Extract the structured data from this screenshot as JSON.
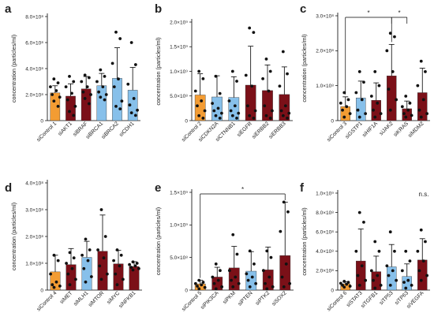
{
  "colors": {
    "orange": "#f39c33",
    "blue": "#87c0ea",
    "darkred": "#7b1018",
    "axis": "#000000",
    "dot": "#111111"
  },
  "chart_data": [
    {
      "panel": "a",
      "type": "bar",
      "ylabel": "concentration (particles/ml)",
      "ylim": [
        0,
        800000000
      ],
      "yticks": [
        0,
        200000000,
        400000000,
        600000000,
        800000000
      ],
      "ytick_labels": [
        "0",
        "2.0×10⁸",
        "4.0×10⁸",
        "6.0×10⁸",
        "8.0×10⁸"
      ],
      "categories": [
        "siControl 1",
        "siAKT1",
        "siBRAF",
        "siBRCA1",
        "siBRCA2",
        "siCDH1"
      ],
      "bar_colors": [
        "orange",
        "darkred",
        "darkred",
        "blue",
        "blue",
        "blue"
      ],
      "values": [
        213000000,
        188000000,
        244000000,
        268000000,
        325000000,
        234000000
      ],
      "errors": [
        55000000,
        95000000,
        95000000,
        95000000,
        235000000,
        175000000
      ],
      "points": [
        [
          320000000,
          290000000,
          260000000,
          230000000,
          200000000,
          180000000,
          150000000,
          110000000
        ],
        [
          340000000,
          300000000,
          260000000,
          210000000,
          160000000,
          110000000,
          70000000,
          40000000
        ],
        [
          350000000,
          330000000,
          300000000,
          260000000,
          220000000,
          200000000,
          170000000,
          130000000
        ],
        [
          390000000,
          340000000,
          300000000,
          260000000,
          220000000,
          200000000,
          180000000,
          160000000
        ],
        [
          680000000,
          630000000,
          440000000,
          320000000,
          260000000,
          150000000,
          110000000,
          90000000
        ],
        [
          600000000,
          430000000,
          280000000,
          170000000,
          120000000,
          80000000,
          60000000,
          40000000
        ]
      ],
      "significance": []
    },
    {
      "panel": "b",
      "type": "bar",
      "ylabel": "concentration (particles/ml)",
      "ylim": [
        0,
        2000000000
      ],
      "yticks": [
        0,
        500000000,
        1000000000,
        1500000000,
        2000000000
      ],
      "ytick_labels": [
        "0",
        "5.0×10⁸",
        "1.0×10⁹",
        "1.5×10⁹",
        "2.0×10⁹"
      ],
      "categories": [
        "siControl 2",
        "siCDKN2A",
        "siCTNNB1",
        "siEGFR",
        "siERBB2",
        "siERBB3"
      ],
      "bar_colors": [
        "orange",
        "blue",
        "blue",
        "darkred",
        "darkred",
        "darkred"
      ],
      "values": [
        520000000,
        480000000,
        470000000,
        720000000,
        610000000,
        530000000
      ],
      "errors": [
        430000000,
        430000000,
        420000000,
        790000000,
        520000000,
        560000000
      ],
      "points": [
        [
          1000000000,
          850000000,
          600000000,
          400000000,
          300000000,
          200000000,
          100000000,
          50000000
        ],
        [
          900000000,
          550000000,
          350000000,
          250000000,
          200000000,
          150000000,
          100000000,
          50000000
        ],
        [
          1000000000,
          800000000,
          400000000,
          300000000,
          200000000,
          150000000,
          100000000,
          50000000
        ],
        [
          1880000000,
          1790000000,
          920000000,
          700000000,
          300000000,
          200000000,
          100000000,
          50000000
        ],
        [
          1250000000,
          1000000000,
          850000000,
          600000000,
          300000000,
          200000000,
          100000000,
          50000000
        ],
        [
          1400000000,
          950000000,
          700000000,
          300000000,
          200000000,
          150000000,
          100000000,
          50000000
        ]
      ],
      "significance": []
    },
    {
      "panel": "c",
      "type": "bar",
      "ylabel": "concentration (particles/ml)",
      "ylim": [
        0,
        300000000
      ],
      "yticks": [
        0,
        100000000,
        200000000,
        300000000
      ],
      "ytick_labels": [
        "0",
        "1.0×10⁸",
        "2.0×10⁸",
        "3.0×10⁸"
      ],
      "categories": [
        "siControl 3",
        "siGSTP1",
        "siHIF1A",
        "siJAK2",
        "siKRAS",
        "siMDM2"
      ],
      "bar_colors": [
        "orange",
        "blue",
        "darkred",
        "darkred",
        "darkred",
        "darkred"
      ],
      "values": [
        40000000,
        65000000,
        58000000,
        128000000,
        34000000,
        80000000
      ],
      "errors": [
        28000000,
        48000000,
        50000000,
        90000000,
        22000000,
        70000000
      ],
      "points": [
        [
          80000000,
          60000000,
          50000000,
          40000000,
          30000000,
          20000000,
          10000000
        ],
        [
          140000000,
          110000000,
          80000000,
          60000000,
          30000000,
          20000000,
          10000000
        ],
        [
          140000000,
          100000000,
          70000000,
          50000000,
          30000000,
          20000000,
          10000000
        ],
        [
          250000000,
          240000000,
          200000000,
          140000000,
          90000000,
          60000000,
          30000000
        ],
        [
          70000000,
          50000000,
          40000000,
          30000000,
          20000000,
          15000000,
          10000000
        ],
        [
          170000000,
          140000000,
          100000000,
          60000000,
          30000000,
          20000000,
          10000000
        ]
      ],
      "significance": [
        {
          "from": 0,
          "to": 3,
          "label": "*"
        },
        {
          "from": 3,
          "to": 4,
          "label": "*"
        }
      ]
    },
    {
      "panel": "d",
      "type": "bar",
      "ylabel": "concentration (particles/ml)",
      "ylim": [
        0,
        400000000
      ],
      "yticks": [
        0,
        100000000,
        200000000,
        300000000,
        400000000
      ],
      "ytick_labels": [
        "0",
        "1.0×10⁸",
        "2.0×10⁸",
        "3.0×10⁸",
        "4.0×10⁸"
      ],
      "categories": [
        "siControl 4",
        "siMET",
        "siMLH1",
        "siMTOR",
        "siMYC",
        "siNFKB1"
      ],
      "bar_colors": [
        "orange",
        "darkred",
        "blue",
        "darkred",
        "darkred",
        "darkred"
      ],
      "values": [
        68000000,
        95000000,
        122000000,
        145000000,
        98000000,
        88000000
      ],
      "errors": [
        62000000,
        60000000,
        60000000,
        135000000,
        50000000,
        18000000
      ],
      "points": [
        [
          130000000,
          110000000,
          60000000,
          30000000,
          20000000,
          15000000,
          10000000
        ],
        [
          140000000,
          120000000,
          100000000,
          80000000,
          60000000,
          40000000,
          20000000
        ],
        [
          190000000,
          150000000,
          130000000,
          110000000,
          80000000,
          50000000,
          30000000
        ],
        [
          300000000,
          200000000,
          150000000,
          120000000,
          90000000,
          60000000,
          40000000
        ],
        [
          150000000,
          130000000,
          110000000,
          90000000,
          60000000,
          40000000,
          20000000
        ],
        [
          105000000,
          100000000,
          95000000,
          90000000,
          85000000,
          80000000,
          75000000
        ]
      ],
      "significance": []
    },
    {
      "panel": "e",
      "type": "bar",
      "ylabel": "concentration (particles/ml)",
      "ylim": [
        0,
        1500000000
      ],
      "yticks": [
        0,
        500000000,
        1000000000,
        1500000000
      ],
      "ytick_labels": [
        "0",
        "5.0×10⁸",
        "1.0×10⁹",
        "1.5×10⁹"
      ],
      "categories": [
        "siControl 5",
        "siPIK3CA",
        "siPKM",
        "siPTEN",
        "siPTK2",
        "siSOX2"
      ],
      "bar_colors": [
        "orange",
        "darkred",
        "darkred",
        "blue",
        "darkred",
        "darkred"
      ],
      "values": [
        95000000,
        200000000,
        340000000,
        290000000,
        310000000,
        530000000
      ],
      "errors": [
        55000000,
        150000000,
        330000000,
        300000000,
        350000000,
        820000000
      ],
      "points": [
        [
          150000000,
          120000000,
          100000000,
          80000000,
          60000000,
          40000000,
          20000000
        ],
        [
          400000000,
          300000000,
          200000000,
          150000000,
          100000000,
          50000000,
          20000000
        ],
        [
          850000000,
          550000000,
          300000000,
          200000000,
          150000000,
          100000000,
          50000000
        ],
        [
          600000000,
          400000000,
          250000000,
          200000000,
          150000000,
          100000000,
          50000000
        ],
        [
          600000000,
          500000000,
          300000000,
          200000000,
          100000000,
          50000000,
          20000000
        ],
        [
          1350000000,
          1200000000,
          900000000,
          400000000,
          200000000,
          100000000,
          50000000
        ]
      ],
      "significance": [
        {
          "from": 0,
          "to": 5,
          "label": "*"
        }
      ]
    },
    {
      "panel": "f",
      "type": "bar",
      "ylabel": "concentration (particles/ml)",
      "ylim": [
        0,
        1000000000
      ],
      "yticks": [
        0,
        200000000,
        400000000,
        600000000,
        800000000,
        1000000000
      ],
      "ytick_labels": [
        "0",
        "2.0×10⁸",
        "4.0×10⁸",
        "6.0×10⁸",
        "8.0×10⁸",
        "1.0×10⁹"
      ],
      "categories": [
        "siControl 6",
        "siSTAT3",
        "siTGFB1",
        "siTP53",
        "siTP63",
        "siVEGFA"
      ],
      "bar_colors": [
        "orange",
        "darkred",
        "darkred",
        "blue",
        "blue",
        "darkred"
      ],
      "values": [
        65000000,
        300000000,
        190000000,
        240000000,
        140000000,
        310000000
      ],
      "errors": [
        22000000,
        330000000,
        160000000,
        230000000,
        130000000,
        220000000
      ],
      "points": [
        [
          90000000,
          80000000,
          70000000,
          60000000,
          50000000,
          40000000,
          30000000
        ],
        [
          800000000,
          700000000,
          400000000,
          250000000,
          150000000,
          100000000,
          50000000
        ],
        [
          500000000,
          400000000,
          200000000,
          150000000,
          100000000,
          50000000,
          20000000
        ],
        [
          600000000,
          400000000,
          250000000,
          200000000,
          150000000,
          100000000,
          50000000
        ],
        [
          400000000,
          300000000,
          200000000,
          100000000,
          80000000,
          50000000,
          20000000
        ],
        [
          620000000,
          500000000,
          400000000,
          300000000,
          200000000,
          150000000,
          100000000
        ]
      ],
      "significance": [
        {
          "label": "n.s."
        }
      ]
    }
  ]
}
